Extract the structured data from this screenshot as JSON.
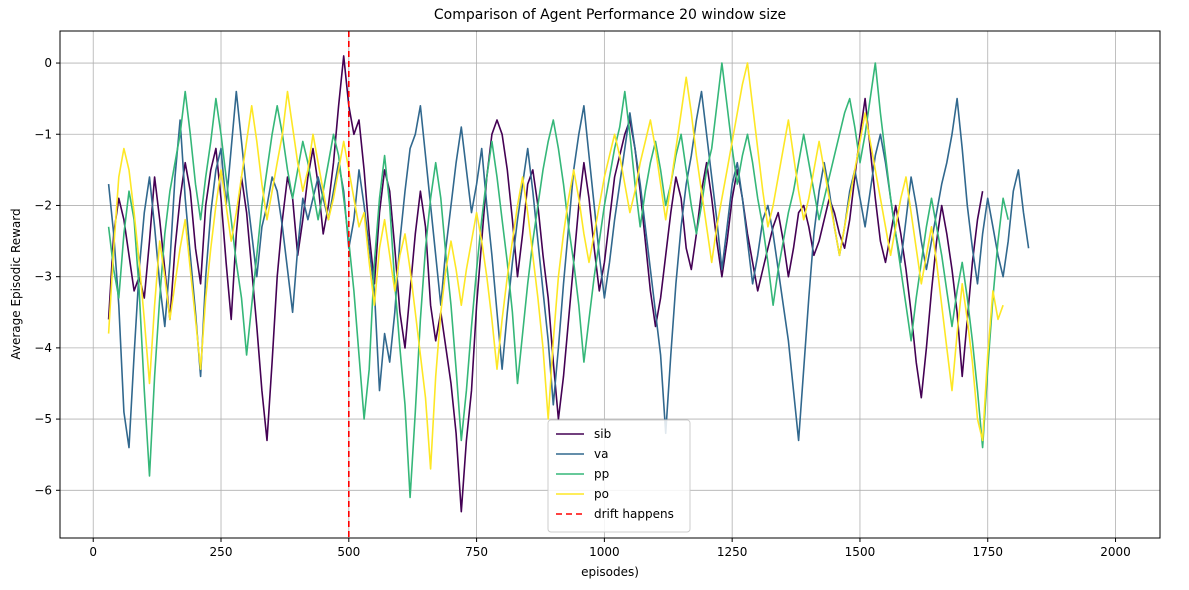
{
  "chart_data": {
    "type": "line",
    "title": "Comparison of Agent Performance 20 window size",
    "xlabel": "episodes)",
    "ylabel": "Average Episodic Reward",
    "xlim": [
      -65,
      2087
    ],
    "ylim": [
      -6.67,
      0.45
    ],
    "x_ticks": [
      0,
      250,
      500,
      750,
      1000,
      1250,
      1500,
      1750,
      2000
    ],
    "y_ticks": [
      0,
      -1,
      -2,
      -3,
      -4,
      -5,
      -6
    ],
    "grid": true,
    "legend_position": "lower-center",
    "x_start": 30,
    "x_step": 10,
    "series": [
      {
        "name": "sib",
        "color": "#440154",
        "values": [
          -3.6,
          -2.4,
          -1.9,
          -2.2,
          -2.7,
          -3.2,
          -3.0,
          -3.3,
          -2.5,
          -1.6,
          -2.2,
          -2.9,
          -3.6,
          -2.6,
          -1.9,
          -1.4,
          -1.8,
          -2.6,
          -3.1,
          -2.0,
          -1.5,
          -1.2,
          -1.9,
          -2.8,
          -3.6,
          -2.4,
          -1.6,
          -2.1,
          -2.9,
          -3.7,
          -4.6,
          -5.3,
          -4.2,
          -3.0,
          -2.2,
          -1.6,
          -1.9,
          -2.7,
          -2.2,
          -1.6,
          -1.2,
          -1.7,
          -2.4,
          -2.0,
          -1.4,
          -0.6,
          0.1,
          -0.6,
          -1.0,
          -0.8,
          -1.5,
          -2.4,
          -3.1,
          -2.1,
          -1.5,
          -1.8,
          -2.6,
          -3.5,
          -4.0,
          -3.2,
          -2.4,
          -1.8,
          -2.3,
          -3.4,
          -3.9,
          -3.5,
          -4.0,
          -4.5,
          -5.2,
          -6.3,
          -5.3,
          -4.6,
          -3.4,
          -2.5,
          -1.6,
          -1.0,
          -0.8,
          -1.0,
          -1.5,
          -2.2,
          -3.0,
          -2.4,
          -1.7,
          -1.5,
          -2.0,
          -2.7,
          -3.3,
          -4.2,
          -5.0,
          -4.4,
          -3.6,
          -2.8,
          -2.0,
          -1.4,
          -1.9,
          -2.6,
          -3.2,
          -2.8,
          -2.2,
          -1.6,
          -1.3,
          -1.0,
          -0.8,
          -1.2,
          -1.8,
          -2.5,
          -3.2,
          -3.7,
          -3.3,
          -2.7,
          -2.1,
          -1.6,
          -1.9,
          -2.6,
          -2.9,
          -2.4,
          -1.8,
          -1.4,
          -1.9,
          -2.5,
          -3.0,
          -2.5,
          -1.9,
          -1.5,
          -1.9,
          -2.4,
          -2.8,
          -3.2,
          -2.9,
          -2.6,
          -2.3,
          -2.1,
          -2.5,
          -3.0,
          -2.6,
          -2.1,
          -2.0,
          -2.3,
          -2.7,
          -2.5,
          -2.2,
          -1.9,
          -2.1,
          -2.4,
          -2.6,
          -2.2,
          -1.6,
          -1.0,
          -0.5,
          -1.2,
          -1.9,
          -2.5,
          -2.8,
          -2.4,
          -2.0,
          -2.4,
          -2.9,
          -3.5,
          -4.2,
          -4.7,
          -4.0,
          -3.2,
          -2.5,
          -2.0,
          -2.4,
          -2.9,
          -3.5,
          -4.4,
          -3.6,
          -2.8,
          -2.2,
          -1.8
        ]
      },
      {
        "name": "va",
        "color": "#31688e",
        "values": [
          -1.7,
          -2.4,
          -3.4,
          -4.9,
          -5.4,
          -4.1,
          -2.9,
          -2.1,
          -1.6,
          -2.3,
          -3.1,
          -3.7,
          -2.8,
          -1.6,
          -0.8,
          -1.9,
          -2.7,
          -3.5,
          -4.4,
          -3.0,
          -2.1,
          -1.5,
          -1.2,
          -2.0,
          -1.2,
          -0.4,
          -1.1,
          -1.8,
          -2.4,
          -3.0,
          -2.3,
          -2.0,
          -1.6,
          -1.8,
          -2.3,
          -2.9,
          -3.5,
          -2.6,
          -1.9,
          -2.2,
          -1.9,
          -1.6,
          -1.9,
          -2.2,
          -1.8,
          -1.4,
          -1.8,
          -2.6,
          -2.2,
          -1.5,
          -2.0,
          -2.6,
          -3.2,
          -4.6,
          -3.8,
          -4.2,
          -3.5,
          -2.5,
          -1.8,
          -1.2,
          -1.0,
          -0.6,
          -1.3,
          -2.0,
          -2.7,
          -3.4,
          -2.6,
          -2.0,
          -1.4,
          -0.9,
          -1.5,
          -2.1,
          -1.7,
          -1.2,
          -2.0,
          -2.7,
          -3.5,
          -4.3,
          -3.5,
          -2.8,
          -2.2,
          -1.7,
          -1.2,
          -1.8,
          -2.5,
          -3.2,
          -3.9,
          -4.8,
          -4.0,
          -3.1,
          -2.3,
          -1.5,
          -1.0,
          -0.6,
          -1.3,
          -2.0,
          -2.7,
          -3.3,
          -2.8,
          -2.2,
          -1.7,
          -1.2,
          -0.7,
          -1.2,
          -1.7,
          -2.3,
          -2.9,
          -3.5,
          -4.1,
          -5.2,
          -4.1,
          -3.1,
          -2.3,
          -1.7,
          -1.3,
          -0.8,
          -0.4,
          -1.0,
          -1.6,
          -2.2,
          -2.9,
          -2.3,
          -1.7,
          -1.4,
          -1.9,
          -2.5,
          -3.1,
          -2.7,
          -2.2,
          -2.0,
          -2.4,
          -2.9,
          -3.4,
          -3.9,
          -4.6,
          -5.3,
          -4.3,
          -3.3,
          -2.4,
          -1.8,
          -1.4,
          -1.8,
          -2.3,
          -2.7,
          -2.3,
          -1.8,
          -1.5,
          -1.9,
          -2.3,
          -1.8,
          -1.3,
          -1.0,
          -1.4,
          -1.9,
          -2.4,
          -2.8,
          -2.2,
          -1.6,
          -2.0,
          -2.5,
          -2.9,
          -2.5,
          -2.1,
          -1.7,
          -1.4,
          -1.0,
          -0.5,
          -1.2,
          -2.0,
          -2.6,
          -3.1,
          -2.4,
          -1.9,
          -2.3,
          -2.7,
          -3.0,
          -2.5,
          -1.8,
          -1.5,
          -2.1,
          -2.6
        ]
      },
      {
        "name": "pp",
        "color": "#35b779",
        "values": [
          -2.3,
          -2.9,
          -3.3,
          -2.4,
          -1.8,
          -2.2,
          -3.2,
          -4.6,
          -5.8,
          -4.4,
          -3.3,
          -2.4,
          -1.8,
          -1.4,
          -1.0,
          -0.4,
          -1.0,
          -1.7,
          -2.2,
          -1.6,
          -1.1,
          -0.5,
          -1.0,
          -1.6,
          -2.2,
          -2.8,
          -3.3,
          -4.1,
          -3.4,
          -2.7,
          -2.0,
          -1.5,
          -1.0,
          -0.6,
          -1.0,
          -1.5,
          -1.9,
          -1.5,
          -1.1,
          -1.4,
          -1.8,
          -2.2,
          -1.8,
          -1.4,
          -1.0,
          -1.3,
          -1.9,
          -2.5,
          -3.2,
          -4.1,
          -5.0,
          -4.3,
          -2.8,
          -1.9,
          -1.3,
          -2.0,
          -3.1,
          -4.0,
          -4.8,
          -6.1,
          -4.9,
          -3.6,
          -2.6,
          -1.9,
          -1.4,
          -1.9,
          -2.7,
          -3.4,
          -4.3,
          -5.3,
          -4.6,
          -3.7,
          -2.9,
          -2.2,
          -1.6,
          -1.1,
          -1.6,
          -2.2,
          -2.8,
          -3.5,
          -4.5,
          -3.8,
          -3.1,
          -2.5,
          -2.0,
          -1.5,
          -1.1,
          -0.8,
          -1.2,
          -1.7,
          -2.3,
          -2.8,
          -3.4,
          -4.2,
          -3.6,
          -3.0,
          -2.5,
          -2.0,
          -1.6,
          -1.2,
          -0.9,
          -0.4,
          -1.0,
          -1.7,
          -2.3,
          -1.8,
          -1.4,
          -1.1,
          -1.5,
          -2.0,
          -1.7,
          -1.3,
          -1.0,
          -1.5,
          -2.0,
          -2.4,
          -2.0,
          -1.5,
          -1.2,
          -0.6,
          0.0,
          -0.6,
          -1.2,
          -1.7,
          -1.3,
          -1.0,
          -1.4,
          -1.9,
          -2.3,
          -2.8,
          -3.4,
          -2.9,
          -2.5,
          -2.1,
          -1.8,
          -1.4,
          -1.0,
          -1.4,
          -1.8,
          -2.2,
          -1.9,
          -1.6,
          -1.3,
          -1.0,
          -0.7,
          -0.5,
          -0.9,
          -1.4,
          -1.0,
          -0.5,
          0.0,
          -0.7,
          -1.3,
          -1.9,
          -2.4,
          -2.9,
          -3.4,
          -3.9,
          -3.3,
          -2.8,
          -2.3,
          -1.9,
          -2.3,
          -2.7,
          -3.2,
          -3.7,
          -3.2,
          -2.8,
          -3.3,
          -3.9,
          -4.6,
          -5.4,
          -4.3,
          -3.3,
          -2.5,
          -1.9,
          -2.2
        ]
      },
      {
        "name": "po",
        "color": "#fde725",
        "values": [
          -3.8,
          -2.6,
          -1.6,
          -1.2,
          -1.5,
          -2.1,
          -2.8,
          -3.6,
          -4.5,
          -3.4,
          -2.5,
          -3.0,
          -3.6,
          -3.1,
          -2.6,
          -2.2,
          -2.9,
          -3.6,
          -4.3,
          -3.3,
          -2.6,
          -2.0,
          -1.5,
          -2.0,
          -2.5,
          -2.1,
          -1.6,
          -1.1,
          -0.6,
          -1.1,
          -1.7,
          -2.2,
          -1.8,
          -1.4,
          -1.0,
          -0.4,
          -0.9,
          -1.4,
          -1.8,
          -1.5,
          -1.0,
          -1.4,
          -1.8,
          -2.2,
          -1.9,
          -1.5,
          -1.1,
          -1.5,
          -1.9,
          -2.3,
          -2.1,
          -2.8,
          -3.4,
          -2.6,
          -2.2,
          -2.7,
          -3.2,
          -2.7,
          -2.4,
          -2.9,
          -3.5,
          -4.1,
          -4.7,
          -5.7,
          -4.4,
          -3.5,
          -2.9,
          -2.5,
          -2.9,
          -3.4,
          -2.9,
          -2.5,
          -2.1,
          -2.5,
          -3.0,
          -3.6,
          -4.3,
          -3.6,
          -3.0,
          -2.5,
          -2.0,
          -1.6,
          -2.1,
          -2.7,
          -3.3,
          -4.0,
          -5.0,
          -3.9,
          -3.0,
          -2.4,
          -1.9,
          -1.5,
          -1.9,
          -2.4,
          -2.8,
          -2.4,
          -2.0,
          -1.6,
          -1.3,
          -1.0,
          -1.3,
          -1.7,
          -2.1,
          -1.8,
          -1.4,
          -1.1,
          -0.8,
          -1.2,
          -1.7,
          -2.2,
          -1.7,
          -1.2,
          -0.7,
          -0.2,
          -0.7,
          -1.3,
          -1.8,
          -2.3,
          -2.8,
          -2.3,
          -1.9,
          -1.5,
          -1.1,
          -0.7,
          -0.3,
          0.0,
          -0.6,
          -1.2,
          -1.8,
          -2.3,
          -2.0,
          -1.6,
          -1.2,
          -0.8,
          -1.3,
          -1.8,
          -2.2,
          -1.9,
          -1.5,
          -1.1,
          -1.5,
          -1.9,
          -2.3,
          -2.7,
          -2.3,
          -1.9,
          -1.5,
          -1.1,
          -0.7,
          -1.1,
          -1.5,
          -1.9,
          -2.3,
          -2.7,
          -2.3,
          -1.9,
          -1.6,
          -2.1,
          -2.6,
          -3.1,
          -2.7,
          -2.3,
          -2.8,
          -3.4,
          -4.0,
          -4.6,
          -3.8,
          -3.1,
          -3.6,
          -4.2,
          -5.0,
          -5.3,
          -4.1,
          -3.2,
          -3.6,
          -3.4
        ]
      }
    ],
    "vline": {
      "x": 500,
      "label": "drift happens",
      "color": "#ff0000",
      "style": "dashed"
    }
  }
}
